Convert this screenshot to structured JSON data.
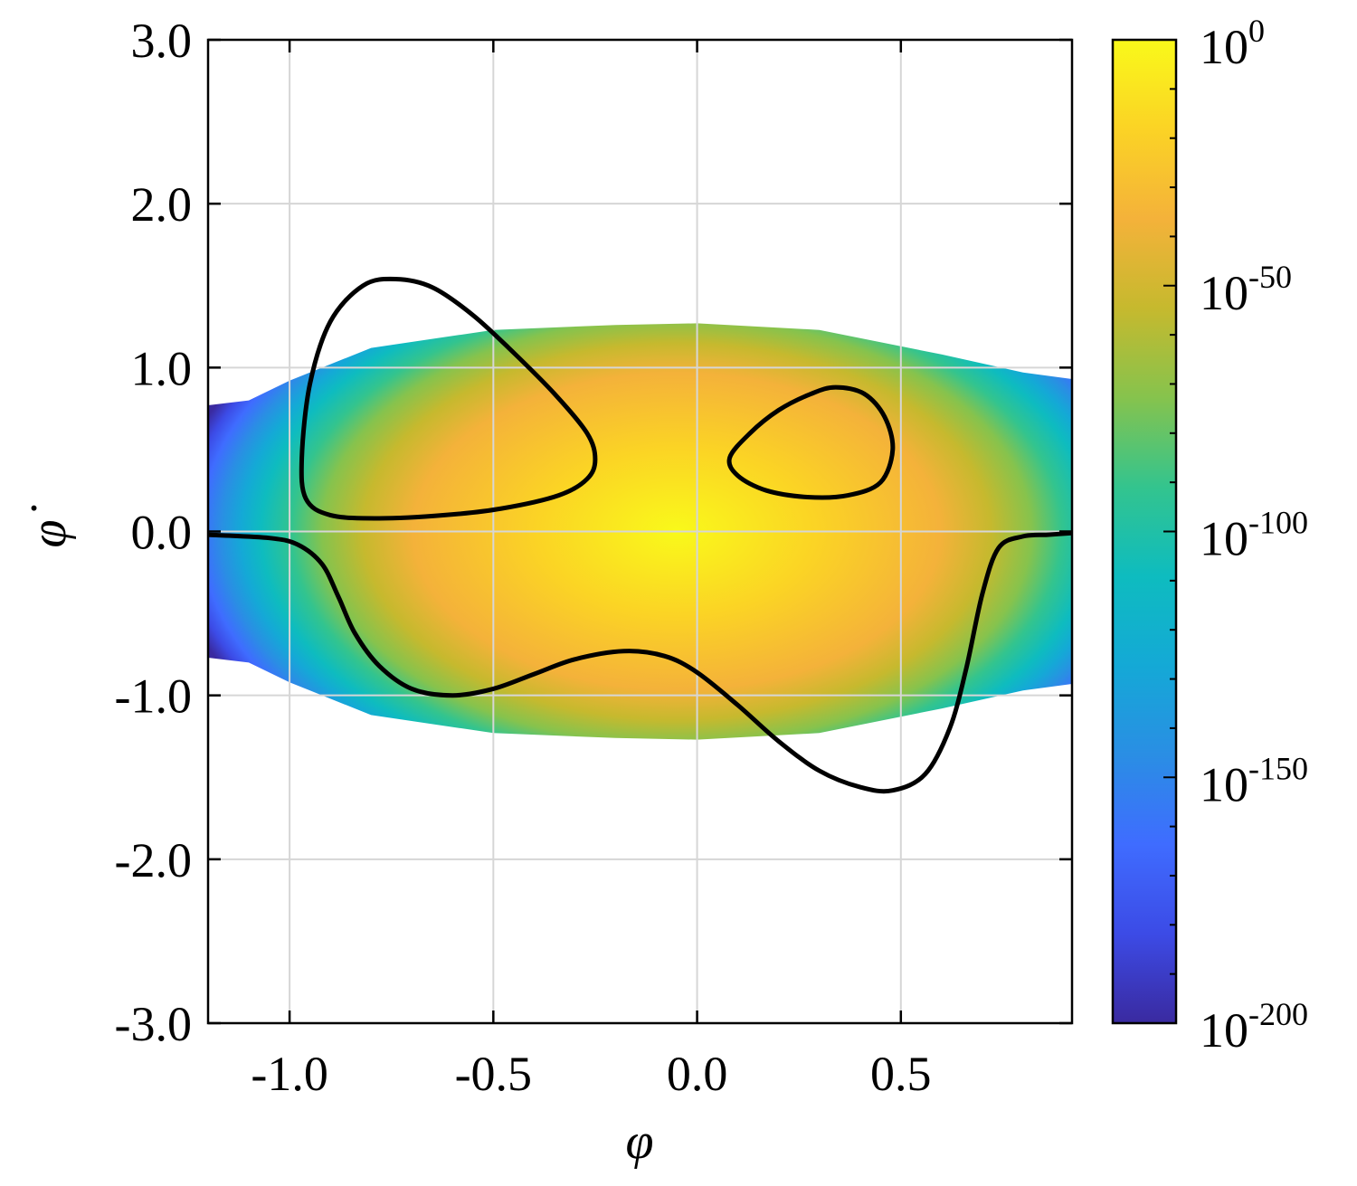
{
  "chart_data": {
    "type": "heatmap",
    "xlabel": "φ",
    "ylabel": "φ̇",
    "xlim": [
      -1.2,
      0.92
    ],
    "ylim": [
      -3.0,
      3.0
    ],
    "x_ticks": [
      -1.0,
      -0.5,
      0.0,
      0.5
    ],
    "x_tick_labels": [
      "-1.0",
      "-0.5",
      "0.0",
      "0.5"
    ],
    "y_ticks": [
      3.0,
      2.0,
      1.0,
      0.0,
      -1.0,
      -2.0,
      -3.0
    ],
    "y_tick_labels": [
      "3.0",
      "2.0",
      "1.0",
      "0.0",
      "-1.0",
      "-2.0",
      "-3.0"
    ],
    "grid": true,
    "density": {
      "description": "probability density shown on log color scale, support |φ̇| ≲ 1.25",
      "center": [
        -0.05,
        0.0
      ],
      "support_boundary": [
        [
          -1.2,
          0.77
        ],
        [
          -1.1,
          0.8
        ],
        [
          -1.0,
          0.92
        ],
        [
          -0.8,
          1.12
        ],
        [
          -0.5,
          1.23
        ],
        [
          -0.2,
          1.26
        ],
        [
          0.0,
          1.27
        ],
        [
          0.3,
          1.23
        ],
        [
          0.6,
          1.08
        ],
        [
          0.8,
          0.97
        ],
        [
          0.92,
          0.93
        ]
      ]
    },
    "colorbar": {
      "scale": "log",
      "range_exponent": [
        -200,
        0
      ],
      "tick_exponents": [
        0,
        -50,
        -100,
        -150,
        -200
      ],
      "tick_base": "10",
      "colors": [
        "#3a2aa0",
        "#3c4be6",
        "#3f6cff",
        "#2a8ee4",
        "#14a9d6",
        "#0ebcbf",
        "#33c48e",
        "#86c34d",
        "#c6b92e",
        "#f4b23a",
        "#fbd325",
        "#f9f91a"
      ]
    },
    "series": [
      {
        "type": "closed_curve",
        "points": [
          [
            -0.97,
            0.45
          ],
          [
            -0.95,
            0.9
          ],
          [
            -0.9,
            1.28
          ],
          [
            -0.82,
            1.5
          ],
          [
            -0.74,
            1.54
          ],
          [
            -0.65,
            1.49
          ],
          [
            -0.55,
            1.32
          ],
          [
            -0.45,
            1.09
          ],
          [
            -0.35,
            0.84
          ],
          [
            -0.27,
            0.6
          ],
          [
            -0.25,
            0.44
          ],
          [
            -0.27,
            0.32
          ],
          [
            -0.34,
            0.22
          ],
          [
            -0.48,
            0.14
          ],
          [
            -0.62,
            0.1
          ],
          [
            -0.78,
            0.08
          ],
          [
            -0.9,
            0.1
          ],
          [
            -0.96,
            0.2
          ]
        ]
      },
      {
        "type": "closed_curve",
        "points": [
          [
            0.08,
            0.45
          ],
          [
            0.13,
            0.6
          ],
          [
            0.2,
            0.74
          ],
          [
            0.28,
            0.84
          ],
          [
            0.34,
            0.88
          ],
          [
            0.41,
            0.84
          ],
          [
            0.46,
            0.7
          ],
          [
            0.48,
            0.5
          ],
          [
            0.45,
            0.3
          ],
          [
            0.37,
            0.22
          ],
          [
            0.27,
            0.21
          ],
          [
            0.17,
            0.25
          ],
          [
            0.1,
            0.34
          ]
        ]
      },
      {
        "type": "open_curve",
        "points": [
          [
            -1.2,
            -0.02
          ],
          [
            -1.05,
            -0.04
          ],
          [
            -0.98,
            -0.08
          ],
          [
            -0.92,
            -0.2
          ],
          [
            -0.88,
            -0.4
          ],
          [
            -0.84,
            -0.62
          ],
          [
            -0.78,
            -0.82
          ],
          [
            -0.7,
            -0.96
          ],
          [
            -0.6,
            -1.0
          ],
          [
            -0.5,
            -0.96
          ],
          [
            -0.4,
            -0.87
          ],
          [
            -0.3,
            -0.78
          ],
          [
            -0.18,
            -0.73
          ],
          [
            -0.08,
            -0.76
          ],
          [
            0.0,
            -0.86
          ],
          [
            0.1,
            -1.06
          ],
          [
            0.2,
            -1.28
          ],
          [
            0.3,
            -1.46
          ],
          [
            0.4,
            -1.56
          ],
          [
            0.48,
            -1.58
          ],
          [
            0.56,
            -1.48
          ],
          [
            0.62,
            -1.2
          ],
          [
            0.66,
            -0.84
          ],
          [
            0.7,
            -0.38
          ],
          [
            0.74,
            -0.1
          ],
          [
            0.8,
            -0.03
          ],
          [
            0.86,
            -0.02
          ],
          [
            0.92,
            -0.01
          ]
        ]
      }
    ]
  }
}
